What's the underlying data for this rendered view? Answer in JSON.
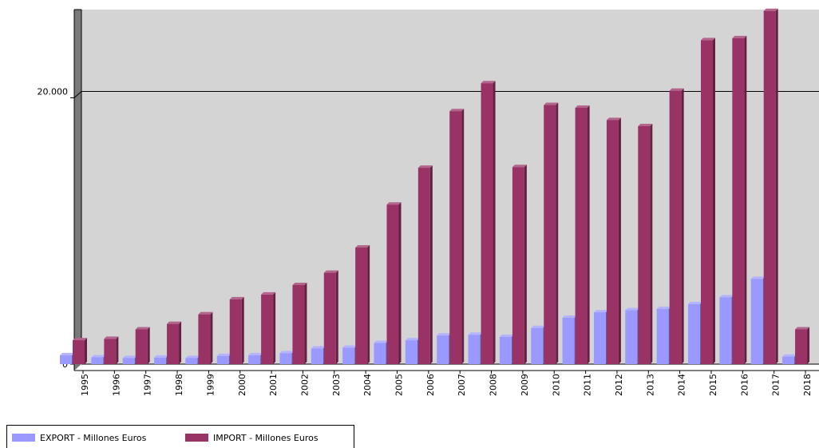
{
  "chart_data": {
    "type": "bar",
    "categories": [
      "1995",
      "1996",
      "1997",
      "1998",
      "1999",
      "2000",
      "2001",
      "2002",
      "2003",
      "2004",
      "2005",
      "2006",
      "2007",
      "2008",
      "2009",
      "2010",
      "2011",
      "2012",
      "2013",
      "2014",
      "2015",
      "2016",
      "2017",
      "2018"
    ],
    "series": [
      {
        "name": "EXPORT - Millones Euros",
        "color": "#9999ff",
        "values": [
          650,
          500,
          450,
          480,
          450,
          600,
          650,
          800,
          1150,
          1200,
          1550,
          1750,
          2100,
          2150,
          2000,
          2650,
          3400,
          3800,
          3950,
          4050,
          4400,
          4900,
          6250,
          550
        ]
      },
      {
        "name": "IMPORT - Millones Euros",
        "color": "#993366",
        "values": [
          1750,
          1850,
          2550,
          2950,
          3650,
          4750,
          5100,
          5800,
          6700,
          8550,
          11700,
          14400,
          18550,
          20600,
          14450,
          19000,
          18800,
          17900,
          17450,
          20050,
          23750,
          23900,
          25900,
          2550
        ]
      }
    ],
    "ylim": [
      0,
      26000
    ],
    "yticks": [
      0,
      20000
    ],
    "ytick_labels": [
      "0",
      "20.000"
    ],
    "grid": "horizontal major",
    "legend_position": "bottom-left",
    "plot_background": "#d4d4d4"
  }
}
